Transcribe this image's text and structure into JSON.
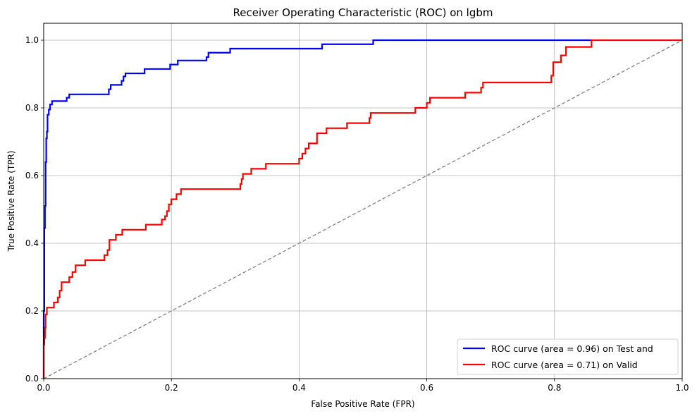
{
  "chart_data": {
    "type": "line",
    "title": "Receiver Operating Characteristic (ROC) on lgbm",
    "xlabel": "False Positive Rate (FPR)",
    "ylabel": "True Positive Rate (TPR)",
    "xlim": [
      0.0,
      1.0
    ],
    "ylim": [
      0.0,
      1.05
    ],
    "x_ticks": [
      "0.0",
      "0.2",
      "0.4",
      "0.6",
      "0.8",
      "1.0"
    ],
    "y_ticks": [
      "0.0",
      "0.2",
      "0.4",
      "0.6",
      "0.8",
      "1.0"
    ],
    "grid": true,
    "legend_position": "lower-right",
    "series": [
      {
        "name": "ROC curve (area = 0.96) on Test and",
        "color": "#0000ff",
        "line_style": "solid",
        "x": [
          0.0,
          0.0,
          0.001,
          0.001,
          0.002,
          0.002,
          0.003,
          0.003,
          0.004,
          0.004,
          0.005,
          0.005,
          0.006,
          0.006,
          0.008,
          0.008,
          0.01,
          0.01,
          0.013,
          0.013,
          0.036,
          0.036,
          0.04,
          0.04,
          0.102,
          0.102,
          0.105,
          0.105,
          0.122,
          0.122,
          0.125,
          0.125,
          0.128,
          0.128,
          0.158,
          0.158,
          0.198,
          0.198,
          0.21,
          0.21,
          0.255,
          0.255,
          0.258,
          0.258,
          0.292,
          0.292,
          0.436,
          0.436,
          0.516,
          0.516,
          0.86
        ],
        "y": [
          0.0,
          0.2,
          0.2,
          0.445,
          0.445,
          0.51,
          0.51,
          0.64,
          0.64,
          0.71,
          0.71,
          0.73,
          0.73,
          0.78,
          0.78,
          0.795,
          0.795,
          0.81,
          0.81,
          0.82,
          0.82,
          0.83,
          0.83,
          0.84,
          0.84,
          0.855,
          0.855,
          0.868,
          0.868,
          0.88,
          0.88,
          0.893,
          0.893,
          0.902,
          0.902,
          0.915,
          0.915,
          0.928,
          0.928,
          0.94,
          0.94,
          0.95,
          0.95,
          0.963,
          0.963,
          0.975,
          0.975,
          0.988,
          0.988,
          1.0,
          1.0
        ]
      },
      {
        "name": "ROC curve (area = 0.71) on Valid",
        "color": "#ff0000",
        "line_style": "solid",
        "x": [
          0.0,
          0.0,
          0.001,
          0.001,
          0.002,
          0.002,
          0.003,
          0.003,
          0.005,
          0.005,
          0.016,
          0.016,
          0.022,
          0.022,
          0.025,
          0.025,
          0.028,
          0.028,
          0.04,
          0.04,
          0.045,
          0.045,
          0.05,
          0.05,
          0.065,
          0.065,
          0.095,
          0.095,
          0.1,
          0.1,
          0.103,
          0.103,
          0.113,
          0.113,
          0.123,
          0.123,
          0.16,
          0.16,
          0.185,
          0.185,
          0.19,
          0.19,
          0.193,
          0.193,
          0.196,
          0.196,
          0.2,
          0.2,
          0.208,
          0.208,
          0.215,
          0.215,
          0.308,
          0.308,
          0.31,
          0.31,
          0.312,
          0.312,
          0.325,
          0.325,
          0.348,
          0.348,
          0.4,
          0.4,
          0.405,
          0.405,
          0.41,
          0.41,
          0.415,
          0.415,
          0.428,
          0.428,
          0.443,
          0.443,
          0.475,
          0.475,
          0.51,
          0.51,
          0.512,
          0.512,
          0.582,
          0.582,
          0.6,
          0.6,
          0.605,
          0.605,
          0.66,
          0.66,
          0.685,
          0.685,
          0.688,
          0.688,
          0.795,
          0.795,
          0.798,
          0.798,
          0.81,
          0.81,
          0.818,
          0.818,
          0.858,
          0.858,
          1.0
        ],
        "y": [
          0.0,
          0.1,
          0.1,
          0.12,
          0.12,
          0.15,
          0.15,
          0.19,
          0.19,
          0.21,
          0.21,
          0.225,
          0.225,
          0.24,
          0.24,
          0.26,
          0.26,
          0.285,
          0.285,
          0.3,
          0.3,
          0.315,
          0.315,
          0.335,
          0.335,
          0.35,
          0.35,
          0.365,
          0.365,
          0.38,
          0.38,
          0.41,
          0.41,
          0.425,
          0.425,
          0.44,
          0.44,
          0.455,
          0.455,
          0.47,
          0.47,
          0.48,
          0.48,
          0.495,
          0.495,
          0.515,
          0.515,
          0.53,
          0.53,
          0.545,
          0.545,
          0.56,
          0.56,
          0.575,
          0.575,
          0.59,
          0.59,
          0.605,
          0.605,
          0.62,
          0.62,
          0.635,
          0.635,
          0.65,
          0.65,
          0.665,
          0.665,
          0.68,
          0.68,
          0.695,
          0.695,
          0.725,
          0.725,
          0.74,
          0.74,
          0.755,
          0.755,
          0.77,
          0.77,
          0.785,
          0.785,
          0.8,
          0.8,
          0.815,
          0.815,
          0.83,
          0.83,
          0.845,
          0.845,
          0.86,
          0.86,
          0.875,
          0.875,
          0.895,
          0.895,
          0.935,
          0.935,
          0.955,
          0.955,
          0.98,
          0.98,
          1.0,
          1.0
        ]
      },
      {
        "name": "",
        "color": "#808080",
        "line_style": "dashed",
        "x": [
          0.0,
          1.0
        ],
        "y": [
          0.0,
          1.0
        ]
      }
    ]
  }
}
